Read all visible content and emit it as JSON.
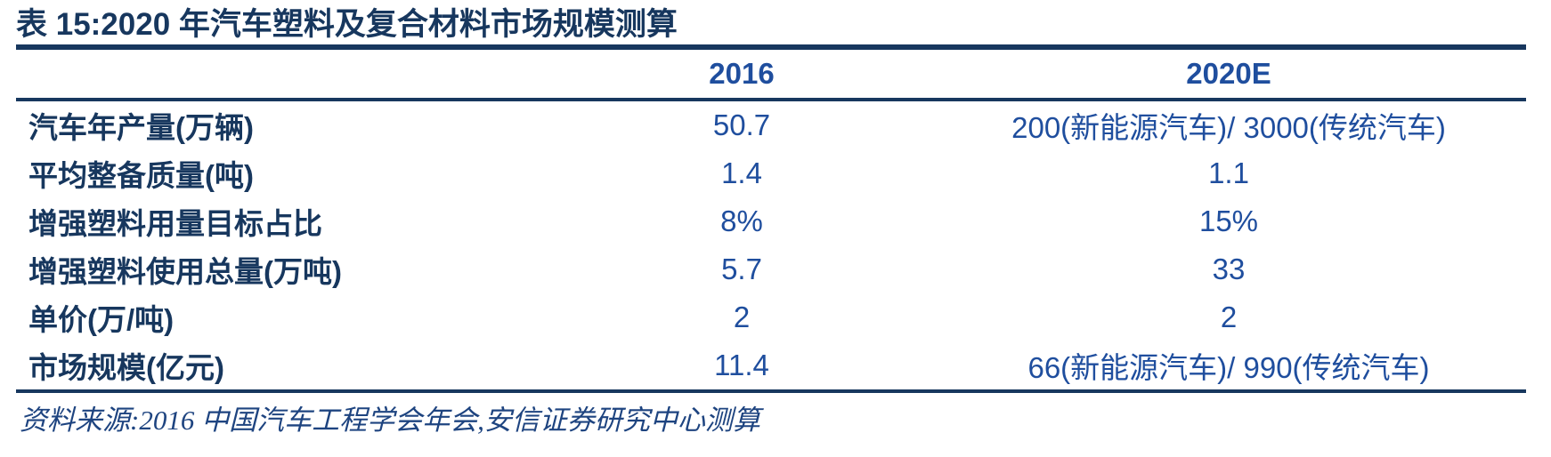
{
  "table": {
    "title": "表 15:2020 年汽车塑料及复合材料市场规模测算",
    "columns": [
      "",
      "2016",
      "2020E"
    ],
    "rows": [
      {
        "label": "汽车年产量(万辆)",
        "values": [
          "50.7",
          "200(新能源汽车)/ 3000(传统汽车)"
        ]
      },
      {
        "label": "平均整备质量(吨)",
        "values": [
          "1.4",
          "1.1"
        ]
      },
      {
        "label": "增强塑料用量目标占比",
        "values": [
          "8%",
          "15%"
        ]
      },
      {
        "label": "增强塑料使用总量(万吨)",
        "values": [
          "5.7",
          "33"
        ]
      },
      {
        "label": "单价(万/吨)",
        "values": [
          "2",
          "2"
        ]
      },
      {
        "label": "市场规模(亿元)",
        "values": [
          "11.4",
          "66(新能源汽车)/ 990(传统汽车)"
        ]
      }
    ],
    "source": "资料来源:2016 中国汽车工程学会年会,安信证券研究中心测算"
  },
  "colors": {
    "rule": "#17375e",
    "title_text": "#17375e",
    "label_text": "#17375e",
    "value_text": "#1f4e9e",
    "source_text": "#1e4480"
  }
}
